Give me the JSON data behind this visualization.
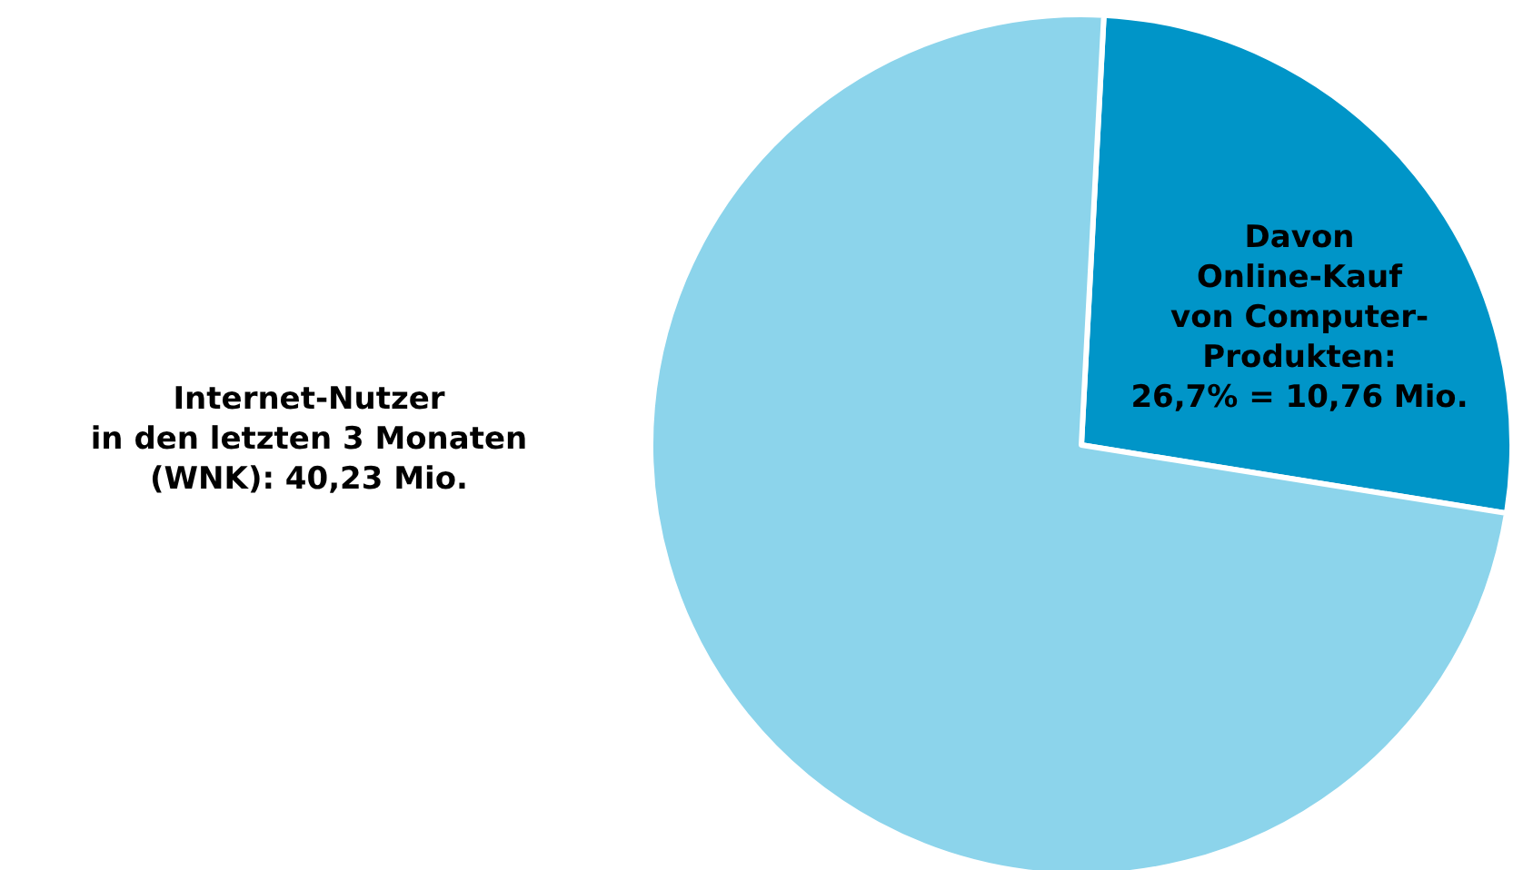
{
  "chart_data": {
    "type": "pie",
    "categories": [
      "Davon\nOnline-Kauf\nvon Computer-\nProdukten:\n26,7% = 10,76 Mio.",
      "Internet-Nutzer\nin den letzten 3 Monaten\n(WNK): 40,23 Mio."
    ],
    "values": [
      26.7,
      73.3
    ],
    "colors": [
      "#0095c8",
      "#8cd4eb"
    ],
    "legend": false
  }
}
